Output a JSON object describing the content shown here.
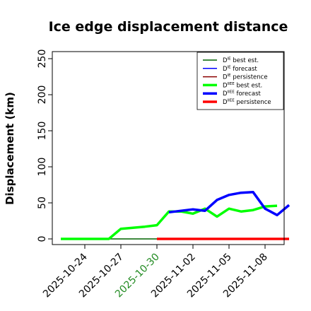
{
  "chart_data": {
    "type": "line",
    "title": "Ice edge displacement distance",
    "ylabel": "Displacement (km)",
    "xlabel": "",
    "ylim": [
      0,
      250
    ],
    "yticks": [
      "0",
      "50",
      "100",
      "150",
      "200",
      "250"
    ],
    "xlim": [
      "2025-10-21",
      "2025-11-08"
    ],
    "xticks": [
      {
        "label": "2025-10-24",
        "color": "#000000"
      },
      {
        "label": "2025-10-27",
        "color": "#000000"
      },
      {
        "label": "2025-10-30",
        "color": "#228b22"
      },
      {
        "label": "2025-11-02",
        "color": "#000000"
      },
      {
        "label": "2025-11-05",
        "color": "#000000"
      },
      {
        "label": "2025-11-08",
        "color": "#000000"
      }
    ],
    "legend_position": "top-right",
    "series": [
      {
        "name": "D^IE_ best est.",
        "color": "#006400",
        "width": 1.5,
        "points": [
          [
            "2025-10-22",
            0
          ],
          [
            "2025-10-30",
            0
          ]
        ]
      },
      {
        "name": "D^IE_ forecast",
        "color": "#0000ff",
        "width": 1.5,
        "points": []
      },
      {
        "name": "D^IE_ persistence",
        "color": "#8b0000",
        "width": 1.5,
        "points": []
      },
      {
        "name": "D^IIEE_ best est.",
        "color": "#00ff00",
        "width": 3.5,
        "points": [
          [
            "2025-10-22",
            0
          ],
          [
            "2025-10-26",
            0
          ],
          [
            "2025-10-27",
            14
          ],
          [
            "2025-10-29",
            17
          ],
          [
            "2025-10-30",
            19
          ],
          [
            "2025-10-31",
            38
          ],
          [
            "2025-11-01",
            38
          ],
          [
            "2025-11-02",
            35
          ],
          [
            "2025-11-03",
            42
          ],
          [
            "2025-11-04",
            31
          ],
          [
            "2025-11-05",
            42
          ],
          [
            "2025-11-06",
            38
          ],
          [
            "2025-11-07",
            40
          ],
          [
            "2025-11-08",
            45
          ],
          [
            "2025-11-09",
            46
          ]
        ]
      },
      {
        "name": "D^IIEE_ forecast",
        "color": "#0000ff",
        "width": 3.5,
        "points": [
          [
            "2025-10-31",
            37
          ],
          [
            "2025-11-02",
            41
          ],
          [
            "2025-11-03",
            39
          ],
          [
            "2025-11-04",
            54
          ],
          [
            "2025-11-05",
            61
          ],
          [
            "2025-11-06",
            64
          ],
          [
            "2025-11-07",
            65
          ],
          [
            "2025-11-08",
            42
          ],
          [
            "2025-11-09",
            33
          ],
          [
            "2025-11-10",
            47
          ]
        ]
      },
      {
        "name": "D^IIEE_ persistence",
        "color": "#ff0000",
        "width": 3.5,
        "points": [
          [
            "2025-10-30",
            0
          ],
          [
            "2025-11-10",
            0
          ]
        ]
      }
    ],
    "legend": [
      {
        "base": "D",
        "sup": "IE",
        "sub": "",
        "text": " best est.",
        "color": "#006400",
        "width": 1.5
      },
      {
        "base": "D",
        "sup": "IE",
        "sub": "",
        "text": " forecast",
        "color": "#0000ff",
        "width": 1.5
      },
      {
        "base": "D",
        "sup": "IE",
        "sub": "",
        "text": " persistence",
        "color": "#8b0000",
        "width": 1.5
      },
      {
        "base": "D",
        "sup": "IIEE",
        "sub": "",
        "text": " best est.",
        "color": "#00ff00",
        "width": 3.5
      },
      {
        "base": "D",
        "sup": "IIEE",
        "sub": "",
        "text": " forecast",
        "color": "#0000ff",
        "width": 3.5
      },
      {
        "base": "D",
        "sup": "IIEE",
        "sub": "",
        "text": " persistence",
        "color": "#ff0000",
        "width": 3.5
      }
    ]
  }
}
